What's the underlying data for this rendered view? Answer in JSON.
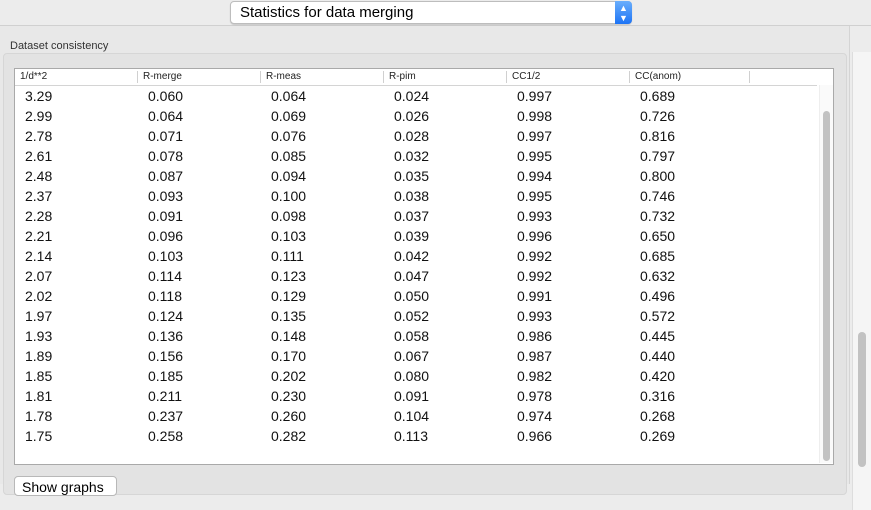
{
  "header": {
    "selector_value": "Statistics for data merging"
  },
  "group": {
    "title": "Dataset consistency"
  },
  "table": {
    "columns": [
      "1/d**2",
      "R-merge",
      "R-meas",
      "R-pim",
      "CC1/2",
      "CC(anom)"
    ],
    "rows": [
      [
        "3.29",
        "0.060",
        "0.064",
        "0.024",
        "0.997",
        "0.689"
      ],
      [
        "2.99",
        "0.064",
        "0.069",
        "0.026",
        "0.998",
        "0.726"
      ],
      [
        "2.78",
        "0.071",
        "0.076",
        "0.028",
        "0.997",
        "0.816"
      ],
      [
        "2.61",
        "0.078",
        "0.085",
        "0.032",
        "0.995",
        "0.797"
      ],
      [
        "2.48",
        "0.087",
        "0.094",
        "0.035",
        "0.994",
        "0.800"
      ],
      [
        "2.37",
        "0.093",
        "0.100",
        "0.038",
        "0.995",
        "0.746"
      ],
      [
        "2.28",
        "0.091",
        "0.098",
        "0.037",
        "0.993",
        "0.732"
      ],
      [
        "2.21",
        "0.096",
        "0.103",
        "0.039",
        "0.996",
        "0.650"
      ],
      [
        "2.14",
        "0.103",
        "0.111",
        "0.042",
        "0.992",
        "0.685"
      ],
      [
        "2.07",
        "0.114",
        "0.123",
        "0.047",
        "0.992",
        "0.632"
      ],
      [
        "2.02",
        "0.118",
        "0.129",
        "0.050",
        "0.991",
        "0.496"
      ],
      [
        "1.97",
        "0.124",
        "0.135",
        "0.052",
        "0.993",
        "0.572"
      ],
      [
        "1.93",
        "0.136",
        "0.148",
        "0.058",
        "0.986",
        "0.445"
      ],
      [
        "1.89",
        "0.156",
        "0.170",
        "0.067",
        "0.987",
        "0.440"
      ],
      [
        "1.85",
        "0.185",
        "0.202",
        "0.080",
        "0.982",
        "0.420"
      ],
      [
        "1.81",
        "0.211",
        "0.230",
        "0.091",
        "0.978",
        "0.316"
      ],
      [
        "1.78",
        "0.237",
        "0.260",
        "0.104",
        "0.974",
        "0.268"
      ],
      [
        "1.75",
        "0.258",
        "0.282",
        "0.113",
        "0.966",
        "0.269"
      ]
    ]
  },
  "buttons": {
    "show_graphs": "Show graphs"
  }
}
